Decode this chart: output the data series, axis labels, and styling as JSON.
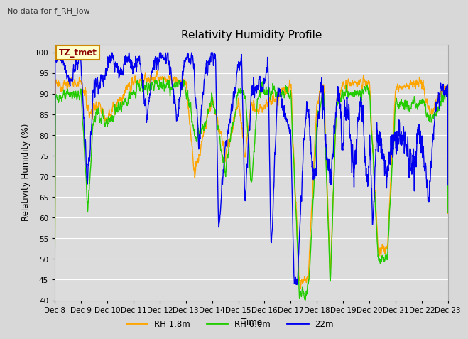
{
  "title": "Relativity Humidity Profile",
  "no_data_text": "No data for f_RH_low",
  "ylabel": "Relativity Humidity (%)",
  "xlabel": "Time",
  "station_label": "TZ_tmet",
  "ylim": [
    40,
    102
  ],
  "yticks": [
    40,
    45,
    50,
    55,
    60,
    65,
    70,
    75,
    80,
    85,
    90,
    95,
    100
  ],
  "xtick_labels": [
    "Dec 8",
    "Dec 9",
    "Dec 10",
    "Dec 11",
    "Dec 12",
    "Dec 13",
    "Dec 14",
    "Dec 15",
    "Dec 16",
    "Dec 17",
    "Dec 18",
    "Dec 19",
    "Dec 20",
    "Dec 21",
    "Dec 22",
    "Dec 23"
  ],
  "legend_labels": [
    "RH 1.8m",
    "RH 6.0m",
    "22m"
  ],
  "colors": {
    "rh18": "#FFA500",
    "rh60": "#22CC00",
    "rh22": "#0000EE"
  },
  "bg_color": "#DCDCDC",
  "grid_color": "#FFFFFF",
  "line_width": 1.0
}
